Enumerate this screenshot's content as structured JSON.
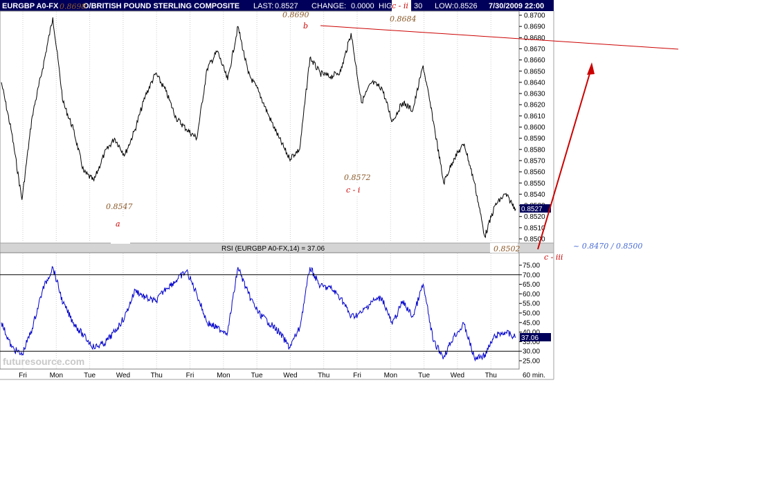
{
  "header": {
    "symbol": "EURGBP A0-FX",
    "name": "O/BRITISH POUND STERLING COMPOSITE",
    "last_label": "LAST:",
    "last_value": "0.8527",
    "change_label": "CHANGE:",
    "change_value": "0.0000",
    "high_label": "HIG",
    "high_value": "30",
    "low_label": "LOW:",
    "low_value": "0.8526",
    "datetime": "7/30/2009 22:00"
  },
  "price_axis": {
    "ticks": [
      "0.8700",
      "0.8690",
      "0.8680",
      "0.8670",
      "0.8660",
      "0.8650",
      "0.8640",
      "0.8630",
      "0.8620",
      "0.8610",
      "0.8600",
      "0.8590",
      "0.8580",
      "0.8570",
      "0.8560",
      "0.8550",
      "0.8540",
      "0.8530",
      "0.8520",
      "0.8510",
      "0.8500"
    ],
    "last_tag": "0.8527"
  },
  "rsi": {
    "title": "RSI (EURGBP A0-FX,14) = 37.06",
    "ticks": [
      "75.00",
      "70.00",
      "65.00",
      "60.00",
      "55.00",
      "50.00",
      "45.00",
      "40.00",
      "35.00",
      "30.00",
      "25.00"
    ],
    "last_tag": "37.06"
  },
  "x_axis": {
    "labels": [
      "Fri",
      "Mon",
      "Tue",
      "Wed",
      "Thu",
      "Fri",
      "Mon",
      "Tue",
      "Wed",
      "Thu",
      "Fri",
      "Mon",
      "Tue",
      "Wed",
      "Thu"
    ],
    "interval": "60 min."
  },
  "watermark": "futuresource.com",
  "annotations": {
    "p1": "0.8698",
    "p2": "0.8690",
    "p3": "0.8684",
    "p4": "0.8547",
    "p5": "0.8572",
    "p6": "0.8502",
    "wave_a": "a",
    "wave_b": "b",
    "wave_ci": "c - i",
    "wave_cii": "c - ii",
    "wave_ciii": "c - iii",
    "target": "~ 0.8470 / 0.8500"
  },
  "colors": {
    "header_bg": "#00005a",
    "price_line": "#000000",
    "rsi_line": "#0000cc",
    "annotation_red": "#cc0000",
    "annotation_brown": "#8b5a2b",
    "target_blue": "#4a6cd4",
    "tag_bg": "#00005a"
  },
  "chart_data": [
    {
      "type": "line",
      "title": "EURGBP A0-FX",
      "ylim": [
        0.8497,
        0.8705
      ],
      "x": [
        0,
        3,
        6,
        9,
        12,
        15,
        18,
        21,
        24,
        27,
        30,
        33,
        36,
        39,
        42,
        45,
        48,
        51,
        54,
        57,
        60,
        63,
        66,
        69,
        72,
        75,
        78,
        81,
        84,
        87,
        90,
        93,
        96,
        99,
        102,
        105,
        108,
        111,
        114,
        117,
        120,
        123,
        126,
        129,
        132,
        135,
        138,
        141,
        144,
        147,
        150
      ],
      "values": [
        0.864,
        0.8595,
        0.8535,
        0.861,
        0.8652,
        0.8698,
        0.8622,
        0.8598,
        0.856,
        0.8552,
        0.8576,
        0.859,
        0.8575,
        0.8598,
        0.8628,
        0.8648,
        0.8632,
        0.8608,
        0.8598,
        0.859,
        0.8652,
        0.8668,
        0.8642,
        0.869,
        0.8648,
        0.8632,
        0.861,
        0.859,
        0.8572,
        0.858,
        0.8662,
        0.8648,
        0.8645,
        0.865,
        0.8684,
        0.8622,
        0.864,
        0.8635,
        0.8605,
        0.8622,
        0.8615,
        0.8655,
        0.8605,
        0.855,
        0.8572,
        0.8585,
        0.855,
        0.8502,
        0.853,
        0.854,
        0.8527
      ]
    },
    {
      "type": "line",
      "title": "RSI (EURGBP A0-FX,14) = 37.06",
      "ylim": [
        22,
        78
      ],
      "x": [
        0,
        3,
        6,
        9,
        12,
        15,
        18,
        21,
        24,
        27,
        30,
        33,
        36,
        39,
        42,
        45,
        48,
        51,
        54,
        57,
        60,
        63,
        66,
        69,
        72,
        75,
        78,
        81,
        84,
        87,
        90,
        93,
        96,
        99,
        102,
        105,
        108,
        111,
        114,
        117,
        120,
        123,
        126,
        129,
        132,
        135,
        138,
        141,
        144,
        147,
        150
      ],
      "values": [
        45,
        32,
        28,
        42,
        62,
        74,
        55,
        45,
        38,
        32,
        34,
        40,
        48,
        62,
        58,
        56,
        63,
        67,
        72,
        60,
        45,
        42,
        40,
        74,
        60,
        50,
        45,
        40,
        32,
        42,
        74,
        64,
        63,
        58,
        48,
        50,
        56,
        58,
        44,
        56,
        48,
        65,
        35,
        27,
        38,
        44,
        26,
        28,
        38,
        40,
        37.06
      ]
    }
  ]
}
